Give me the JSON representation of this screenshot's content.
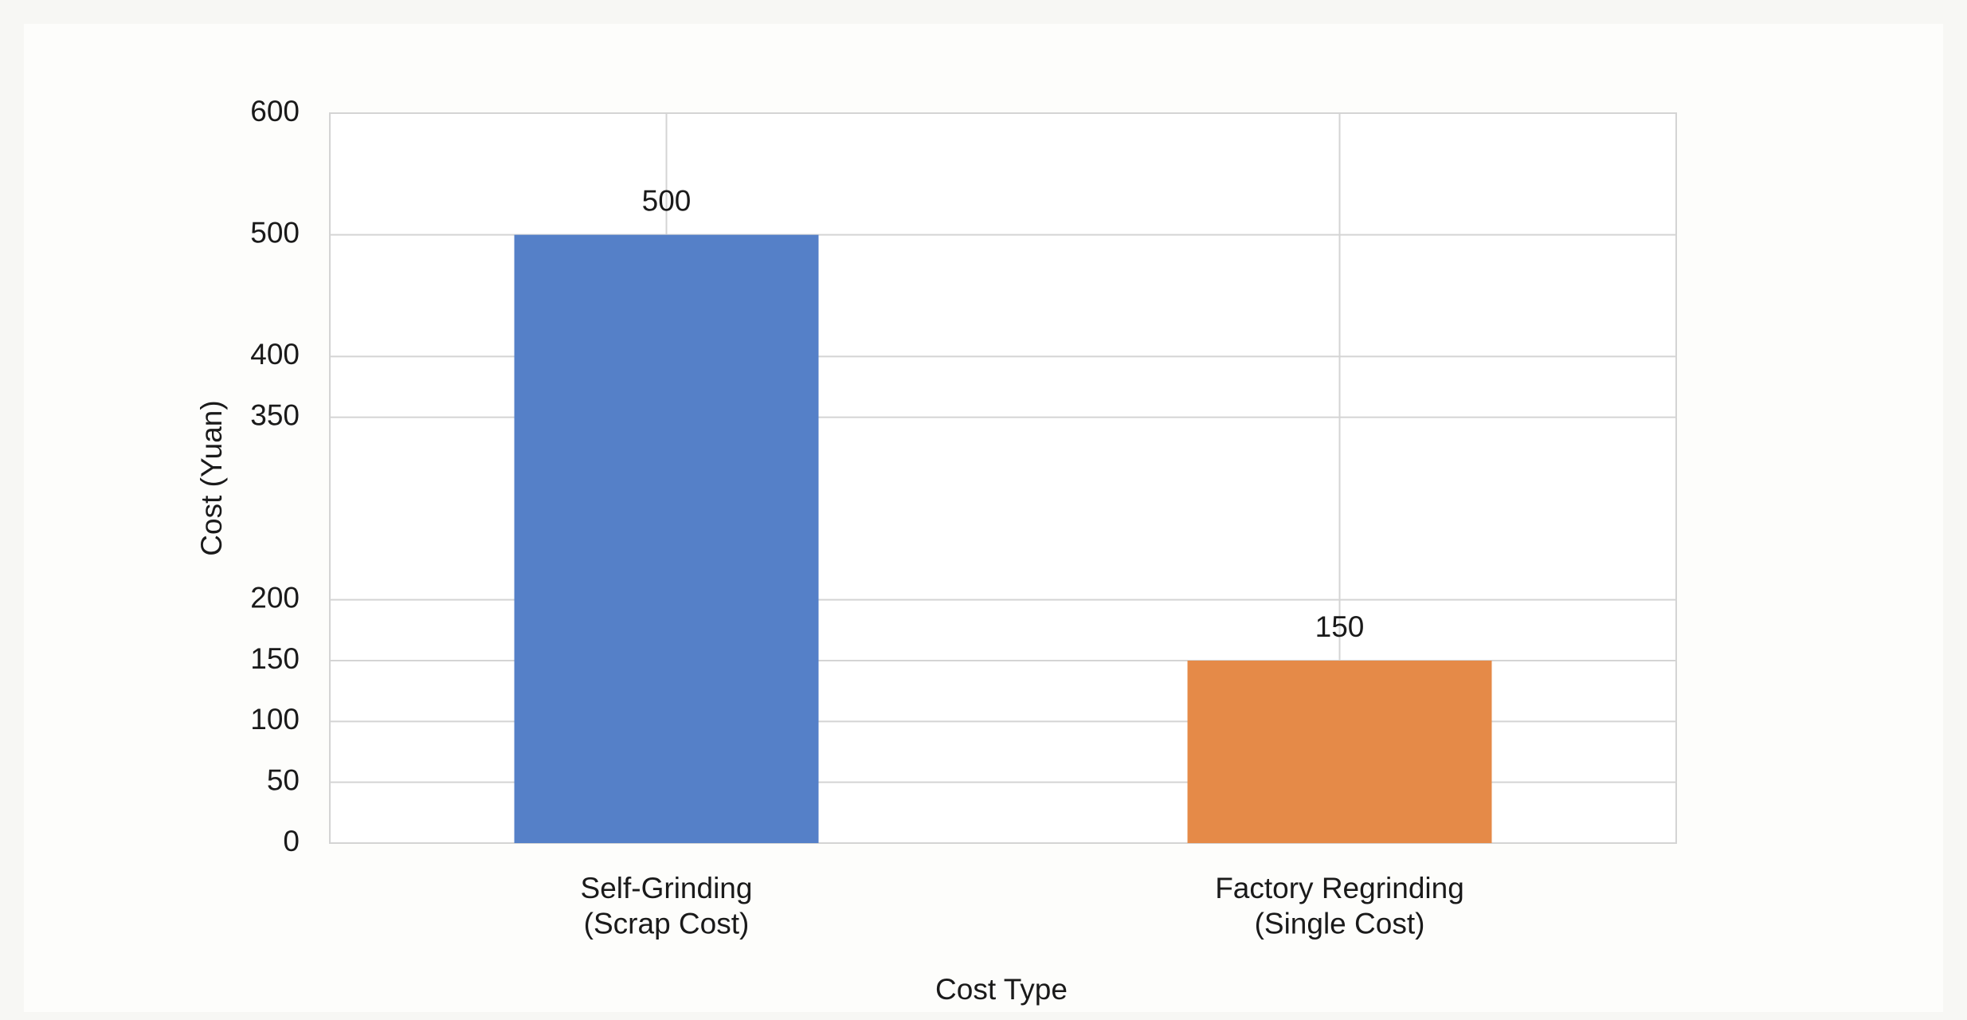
{
  "chart_data": {
    "type": "bar",
    "categories": [
      "Self-Grinding\n(Scrap Cost)",
      "Factory Regrinding\n(Single Cost)"
    ],
    "values": [
      500,
      150
    ],
    "colors": [
      "#5580c8",
      "#e58a48"
    ],
    "x_label": "Cost Type",
    "y_label": "Cost (Yuan)",
    "ylim": [
      0,
      600
    ],
    "yticks": [
      0,
      50,
      100,
      150,
      200,
      350,
      400,
      500,
      600
    ],
    "grid": true
  }
}
